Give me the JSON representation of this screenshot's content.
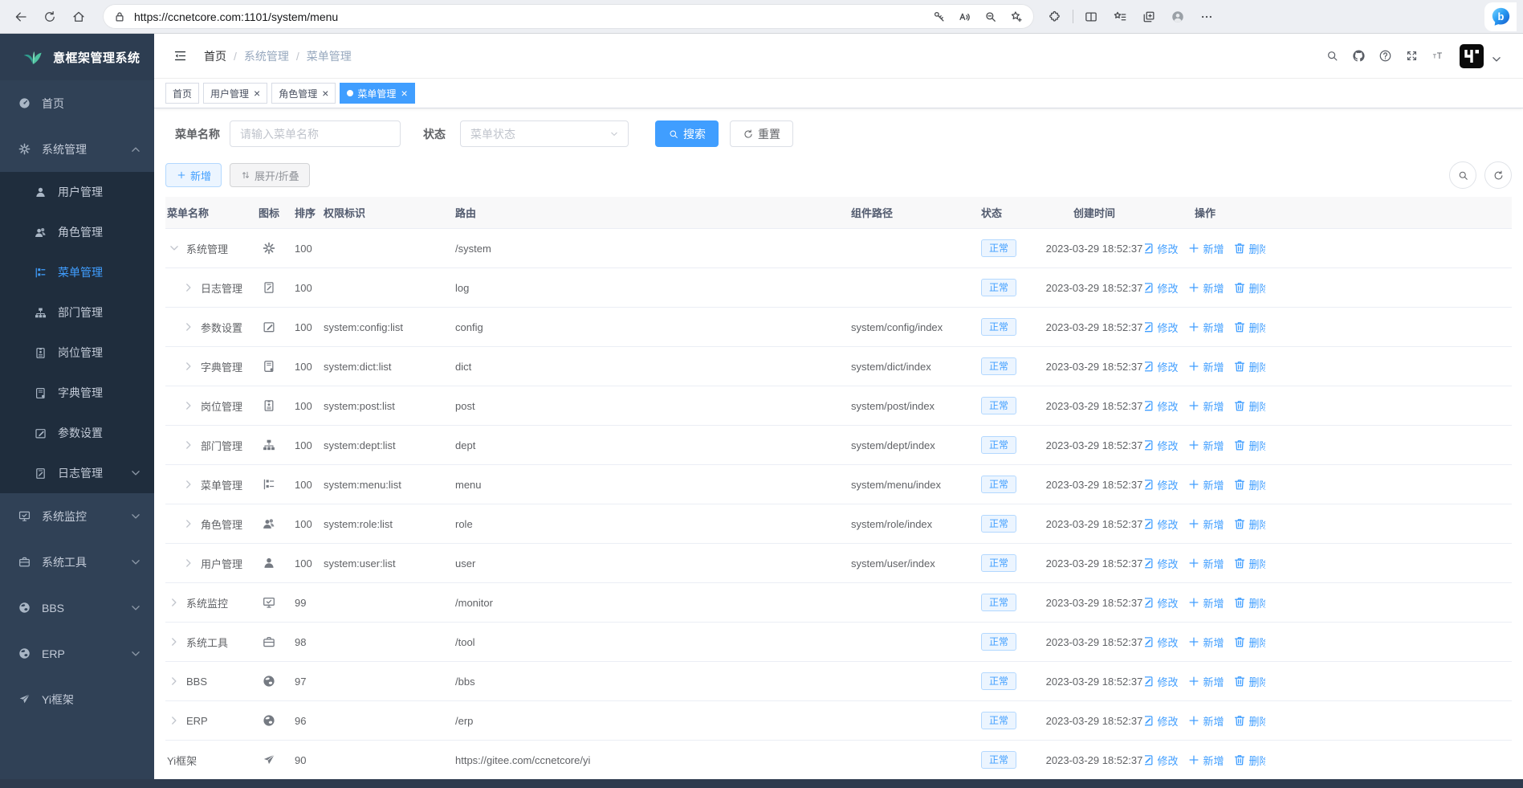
{
  "browser": {
    "url": "https://ccnetcore.com:1101/system/menu",
    "nav_icons": [
      {
        "name": "back-arrow",
        "icon": "back"
      },
      {
        "name": "page-refresh",
        "icon": "refresh"
      },
      {
        "name": "home",
        "icon": "home"
      }
    ],
    "pill_icons": [
      {
        "name": "password-key",
        "icon": "key"
      },
      {
        "name": "read-aloud",
        "icon": "aloud"
      },
      {
        "name": "zoom-out",
        "icon": "zoomout"
      },
      {
        "name": "add-favorite",
        "icon": "starplus"
      }
    ],
    "toolbar_icons": [
      {
        "name": "extensions",
        "icon": "ext"
      },
      {
        "name": "split-screen",
        "icon": "split"
      },
      {
        "name": "favorites-bar",
        "icon": "starlines"
      },
      {
        "name": "collections",
        "icon": "collections"
      },
      {
        "name": "browser-profile",
        "icon": "person"
      },
      {
        "name": "more-options",
        "icon": "dots"
      }
    ]
  },
  "app": {
    "logo_title": "意框架管理系统",
    "sidebar": {
      "items": [
        {
          "key": "home",
          "label": "首页",
          "icon": "dashboard"
        },
        {
          "key": "system",
          "label": "系统管理",
          "icon": "gear",
          "arrow": "up",
          "children": [
            {
              "key": "user",
              "label": "用户管理",
              "icon": "user"
            },
            {
              "key": "role",
              "label": "角色管理",
              "icon": "users"
            },
            {
              "key": "menu",
              "label": "菜单管理",
              "icon": "menu",
              "active": true
            },
            {
              "key": "dept",
              "label": "部门管理",
              "icon": "dept"
            },
            {
              "key": "post",
              "label": "岗位管理",
              "icon": "post"
            },
            {
              "key": "dict",
              "label": "字典管理",
              "icon": "dict"
            },
            {
              "key": "config",
              "label": "参数设置",
              "icon": "config"
            },
            {
              "key": "log",
              "label": "日志管理",
              "icon": "log",
              "arrow": "down"
            }
          ]
        },
        {
          "key": "monitor",
          "label": "系统监控",
          "icon": "monitor",
          "arrow": "down"
        },
        {
          "key": "tool",
          "label": "系统工具",
          "icon": "tool",
          "arrow": "down"
        },
        {
          "key": "bbs",
          "label": "BBS",
          "icon": "globe",
          "arrow": "down"
        },
        {
          "key": "erp",
          "label": "ERP",
          "icon": "globe",
          "arrow": "down"
        },
        {
          "key": "yi",
          "label": "Yi框架",
          "icon": "plane"
        }
      ]
    },
    "header": {
      "breadcrumb": [
        "首页",
        "系统管理",
        "菜单管理"
      ],
      "icons": [
        {
          "name": "header-search",
          "icon": "search"
        },
        {
          "name": "github",
          "icon": "github"
        },
        {
          "name": "help",
          "icon": "question"
        },
        {
          "name": "fullscreen",
          "icon": "full"
        },
        {
          "name": "font-size",
          "icon": "font"
        }
      ]
    },
    "tabs": [
      {
        "key": "home",
        "label": "首页",
        "closable": false,
        "active": false
      },
      {
        "key": "user",
        "label": "用户管理",
        "closable": true,
        "active": false
      },
      {
        "key": "role",
        "label": "角色管理",
        "closable": true,
        "active": false
      },
      {
        "key": "menu",
        "label": "菜单管理",
        "closable": true,
        "active": true
      }
    ],
    "filters": {
      "name_label": "菜单名称",
      "name_placeholder": "请输入菜单名称",
      "status_label": "状态",
      "status_placeholder": "菜单状态",
      "search_label": "搜索",
      "reset_label": "重置"
    },
    "toolbar": {
      "add_label": "新增",
      "toggle_label": "展开/折叠"
    },
    "table": {
      "columns": [
        "菜单名称",
        "图标",
        "排序",
        "权限标识",
        "路由",
        "组件路径",
        "状态",
        "创建时间",
        "操作"
      ],
      "row_actions": [
        {
          "key": "edit",
          "label": "修改",
          "icon": "edit"
        },
        {
          "key": "add",
          "label": "新增",
          "icon": "plus"
        },
        {
          "key": "delete",
          "label": "删除",
          "icon": "trash"
        }
      ],
      "rows": [
        {
          "name": "系统管理",
          "level": 1,
          "expand": "down",
          "icon": "gear",
          "sort": "100",
          "perm": "",
          "route": "/system",
          "component": "",
          "status": "正常",
          "created": "2023-03-29 18:52:37"
        },
        {
          "name": "日志管理",
          "level": 2,
          "expand": "right",
          "icon": "log",
          "sort": "100",
          "perm": "",
          "route": "log",
          "component": "",
          "status": "正常",
          "created": "2023-03-29 18:52:37"
        },
        {
          "name": "参数设置",
          "level": 2,
          "expand": "right",
          "icon": "config",
          "sort": "100",
          "perm": "system:config:list",
          "route": "config",
          "component": "system/config/index",
          "status": "正常",
          "created": "2023-03-29 18:52:37"
        },
        {
          "name": "字典管理",
          "level": 2,
          "expand": "right",
          "icon": "dict",
          "sort": "100",
          "perm": "system:dict:list",
          "route": "dict",
          "component": "system/dict/index",
          "status": "正常",
          "created": "2023-03-29 18:52:37"
        },
        {
          "name": "岗位管理",
          "level": 2,
          "expand": "right",
          "icon": "post",
          "sort": "100",
          "perm": "system:post:list",
          "route": "post",
          "component": "system/post/index",
          "status": "正常",
          "created": "2023-03-29 18:52:37"
        },
        {
          "name": "部门管理",
          "level": 2,
          "expand": "right",
          "icon": "dept",
          "sort": "100",
          "perm": "system:dept:list",
          "route": "dept",
          "component": "system/dept/index",
          "status": "正常",
          "created": "2023-03-29 18:52:37"
        },
        {
          "name": "菜单管理",
          "level": 2,
          "expand": "right",
          "icon": "menu",
          "sort": "100",
          "perm": "system:menu:list",
          "route": "menu",
          "component": "system/menu/index",
          "status": "正常",
          "created": "2023-03-29 18:52:37"
        },
        {
          "name": "角色管理",
          "level": 2,
          "expand": "right",
          "icon": "users",
          "sort": "100",
          "perm": "system:role:list",
          "route": "role",
          "component": "system/role/index",
          "status": "正常",
          "created": "2023-03-29 18:52:37"
        },
        {
          "name": "用户管理",
          "level": 2,
          "expand": "right",
          "icon": "user",
          "sort": "100",
          "perm": "system:user:list",
          "route": "user",
          "component": "system/user/index",
          "status": "正常",
          "created": "2023-03-29 18:52:37"
        },
        {
          "name": "系统监控",
          "level": 1,
          "expand": "right",
          "icon": "monitor",
          "sort": "99",
          "perm": "",
          "route": "/monitor",
          "component": "",
          "status": "正常",
          "created": "2023-03-29 18:52:37"
        },
        {
          "name": "系统工具",
          "level": 1,
          "expand": "right",
          "icon": "tool",
          "sort": "98",
          "perm": "",
          "route": "/tool",
          "component": "",
          "status": "正常",
          "created": "2023-03-29 18:52:37"
        },
        {
          "name": "BBS",
          "level": 1,
          "expand": "right",
          "icon": "globe",
          "sort": "97",
          "perm": "",
          "route": "/bbs",
          "component": "",
          "status": "正常",
          "created": "2023-03-29 18:52:37"
        },
        {
          "name": "ERP",
          "level": 1,
          "expand": "right",
          "icon": "globe",
          "sort": "96",
          "perm": "",
          "route": "/erp",
          "component": "",
          "status": "正常",
          "created": "2023-03-29 18:52:37"
        },
        {
          "name": "Yi框架",
          "level": 1,
          "expand": null,
          "icon": "plane",
          "sort": "90",
          "perm": "",
          "route": "https://gitee.com/ccnetcore/yi",
          "component": "",
          "status": "正常",
          "created": "2023-03-29 18:52:37"
        }
      ]
    }
  }
}
